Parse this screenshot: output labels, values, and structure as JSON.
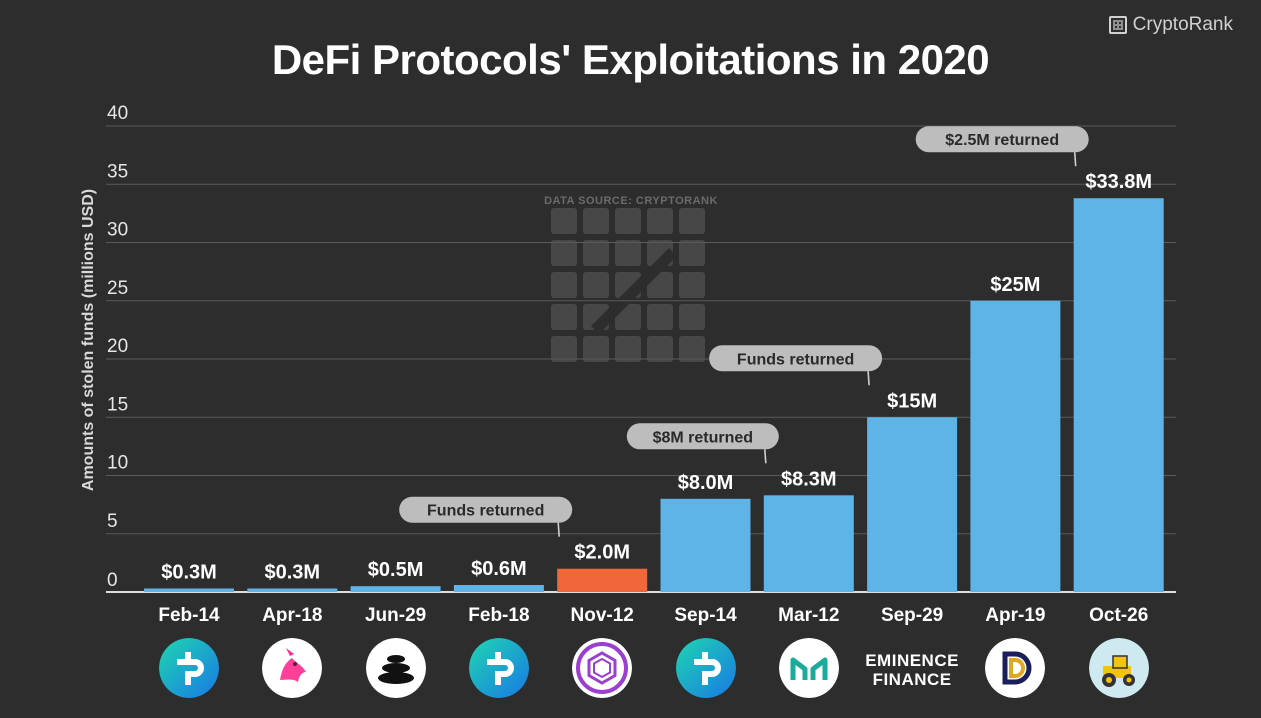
{
  "title": "DeFi Protocols' Exploitations in 2020",
  "brand": "CryptoRank",
  "colors": {
    "background": "#2d2d2d",
    "bar_default": "#5eb4e6",
    "bar_highlight": "#f2673a",
    "gridline": "#5a5a5a",
    "callout_bg": "#bdbdbd",
    "text": "#ffffff"
  },
  "chart_data": {
    "type": "bar",
    "title": "DeFi Protocols' Exploitations in 2020",
    "xlabel": "",
    "ylabel": "Amounts of stolen funds (millions USD)",
    "ylim": [
      0,
      40
    ],
    "yticks": [
      "0",
      "5",
      "10",
      "15",
      "20",
      "25",
      "30",
      "35",
      "40"
    ],
    "grid": true,
    "watermark": "DATA SOURCE: CRYPTORANK",
    "categories": [
      "Feb-14",
      "Apr-18",
      "Jun-29",
      "Feb-18",
      "Nov-12",
      "Sep-14",
      "Mar-12",
      "Sep-29",
      "Apr-19",
      "Oct-26"
    ],
    "values": [
      0.3,
      0.3,
      0.5,
      0.6,
      2.0,
      8.0,
      8.3,
      15,
      25,
      33.8
    ],
    "value_labels": [
      "$0.3M",
      "$0.3M",
      "$0.5M",
      "$0.6M",
      "$2.0M",
      "$8.0M",
      "$8.3M",
      "$15M",
      "$25M",
      "$33.8M"
    ],
    "highlight_index": 4,
    "annotations": [
      {
        "bar_index": 4,
        "text": "Funds returned"
      },
      {
        "bar_index": 6,
        "text": "$8M returned"
      },
      {
        "bar_index": 7,
        "text": "Funds returned"
      },
      {
        "bar_index": 9,
        "text": "$2.5M returned"
      }
    ],
    "protocol_icons": [
      "bzx-icon",
      "uniswap-icon",
      "balancer-icon",
      "bzx-icon",
      "akropolis-icon",
      "bzx-icon",
      "maker-icon",
      "eminence-wordmark",
      "dforce-icon",
      "harvest-icon"
    ],
    "eminence_text": [
      "EMINENCE",
      "FINANCE"
    ]
  }
}
